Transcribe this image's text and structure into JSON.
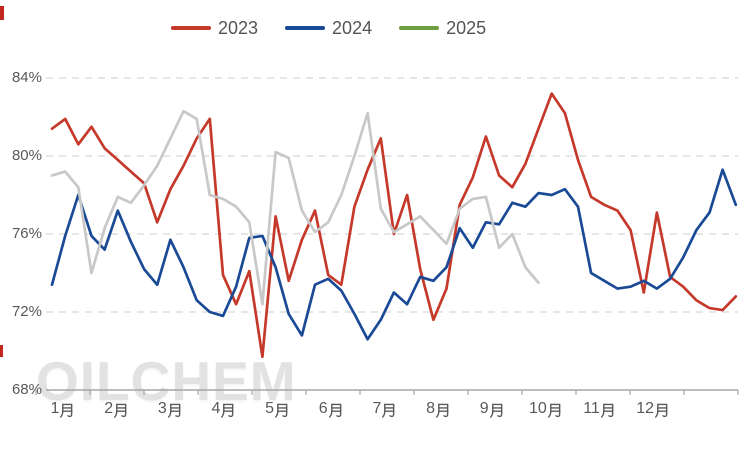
{
  "watermark": {
    "text": "OILCHEM"
  },
  "chart_data": {
    "type": "line",
    "title": "",
    "legend_position": "top",
    "grid": "horizontal-dashed",
    "x_axis": {
      "unit": "month",
      "tick_labels": [
        "1月",
        "2月",
        "3月",
        "4月",
        "5月",
        "6月",
        "7月",
        "8月",
        "9月",
        "10月",
        "11月",
        "12月"
      ],
      "points_per_series": "weekly"
    },
    "y_axis": {
      "unit": "%",
      "min": 68,
      "max": 84,
      "tick_labels": [
        "68%",
        "72%",
        "76%",
        "80%",
        "84%"
      ]
    },
    "series": [
      {
        "name": "2023",
        "color": "#c5392b",
        "values": [
          81.4,
          81.9,
          80.6,
          81.5,
          80.4,
          79.8,
          79.2,
          78.6,
          76.6,
          78.3,
          79.5,
          80.9,
          81.9,
          73.9,
          72.4,
          74.1,
          69.7,
          76.9,
          73.6,
          75.7,
          77.2,
          73.9,
          73.4,
          77.4,
          79.3,
          80.9,
          76.0,
          78.0,
          74.2,
          71.6,
          73.2,
          77.5,
          78.9,
          81.0,
          79.0,
          78.4,
          79.6,
          81.4,
          83.2,
          82.2,
          79.8,
          77.9,
          77.5,
          77.2,
          76.2,
          73.0,
          77.1,
          73.8,
          73.3,
          72.6,
          72.2,
          72.1,
          72.8
        ]
      },
      {
        "name": "2024",
        "color": "#1a4a96",
        "values": [
          73.4,
          75.9,
          78.0,
          75.9,
          75.2,
          77.2,
          75.6,
          74.2,
          73.4,
          75.7,
          74.3,
          72.6,
          72.0,
          71.8,
          73.3,
          75.8,
          75.9,
          74.3,
          71.9,
          70.8,
          73.4,
          73.7,
          73.1,
          71.9,
          70.6,
          71.6,
          73.0,
          72.4,
          73.8,
          73.6,
          74.3,
          76.3,
          75.3,
          76.6,
          76.5,
          77.6,
          77.4,
          78.1,
          78.0,
          78.3,
          77.4,
          74.0,
          73.6,
          73.2,
          73.3,
          73.6,
          73.2,
          73.7,
          74.8,
          76.2,
          77.1,
          79.3,
          77.5
        ]
      },
      {
        "name": "2025",
        "color": "#6f9e3f",
        "line_color": "#c8c8c8",
        "values": [
          79.0,
          79.2,
          78.4,
          74.0,
          76.3,
          77.9,
          77.6,
          78.5,
          79.5,
          80.9,
          82.3,
          81.9,
          78.0,
          77.8,
          77.4,
          76.6,
          72.4,
          80.2,
          79.9,
          77.2,
          76.1,
          76.6,
          78.0,
          80.0,
          82.2,
          77.3,
          76.1,
          76.5,
          76.9,
          76.2,
          75.5,
          77.3,
          77.8,
          77.9,
          75.3,
          76.0,
          74.3,
          73.5
        ]
      }
    ]
  }
}
